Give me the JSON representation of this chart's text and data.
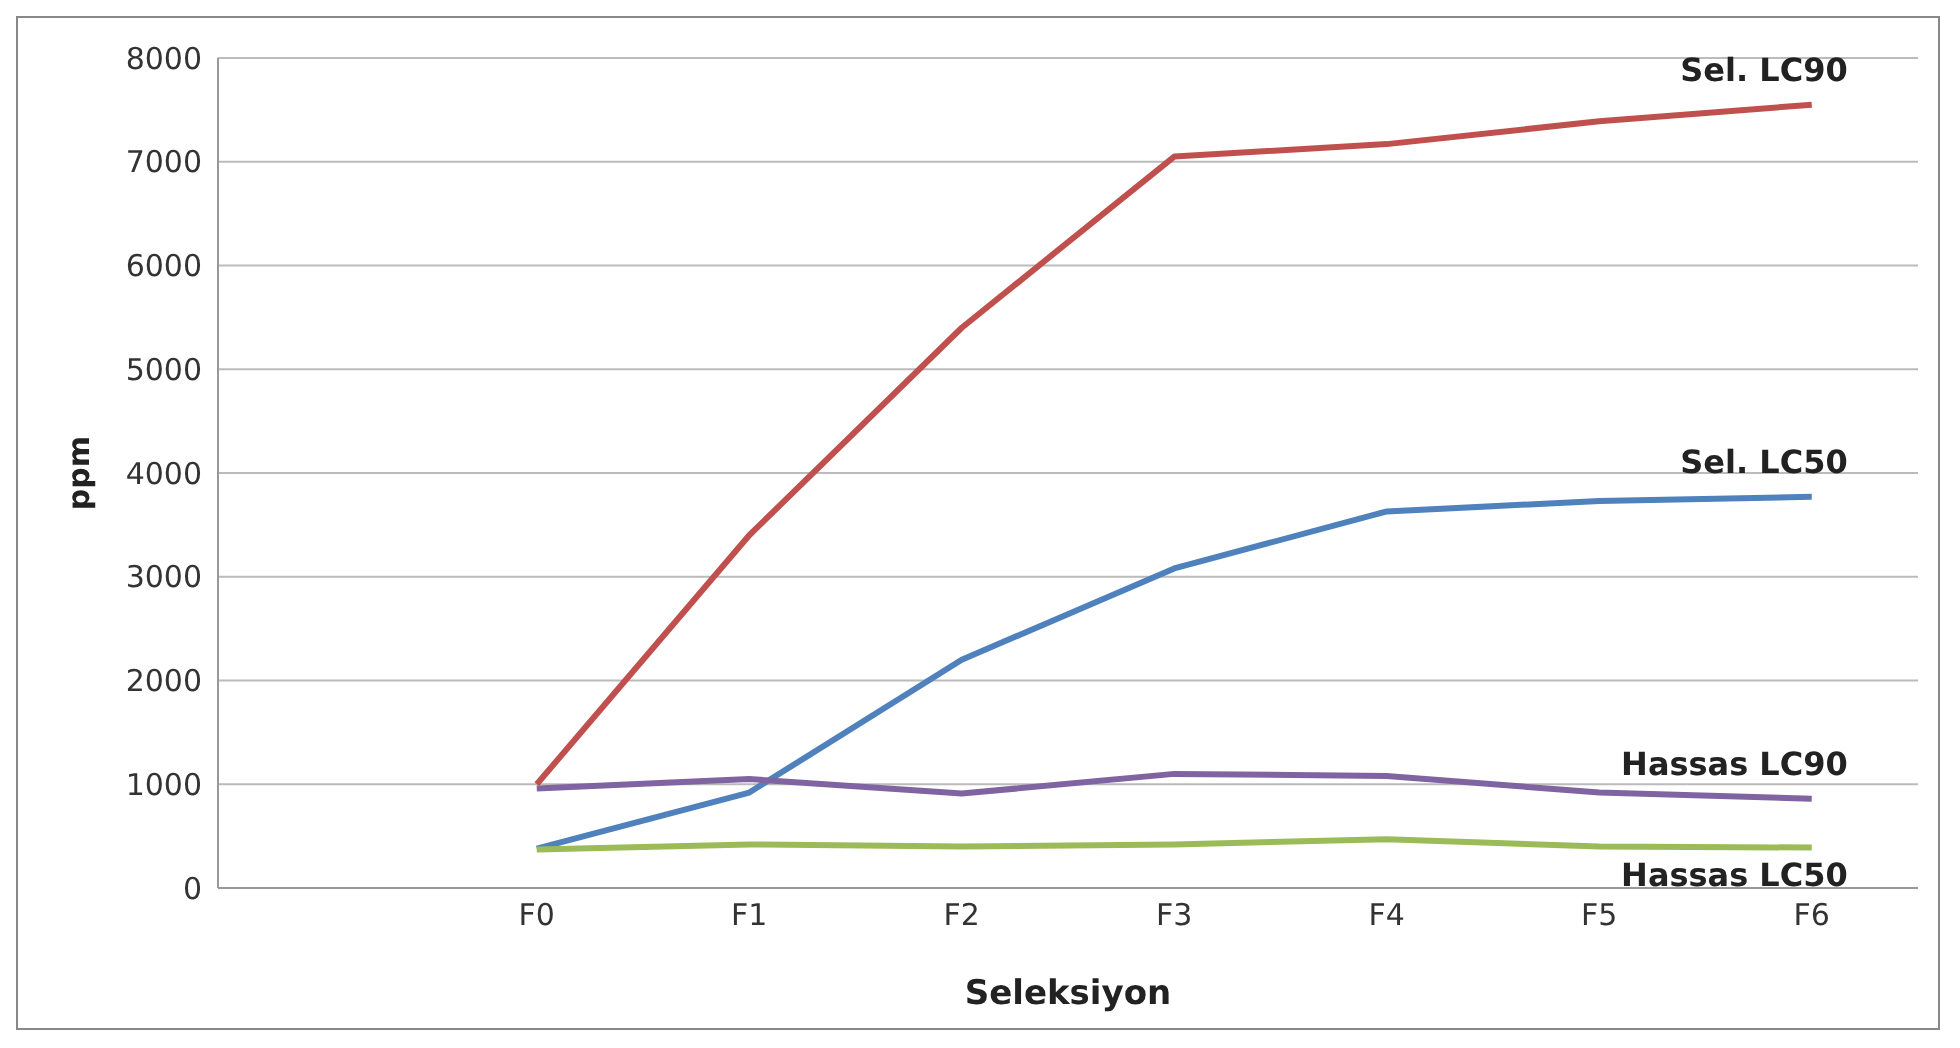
{
  "chart_data": {
    "type": "line",
    "xlabel": "Seleksiyon",
    "ylabel": "ppm",
    "categories": [
      null,
      "F0",
      "F1",
      "F2",
      "F3",
      "F4",
      "F5",
      "F6"
    ],
    "series": [
      {
        "name": "Sel. LC90",
        "color": "#c0504d",
        "values": [
          null,
          1000,
          3400,
          5400,
          7050,
          7170,
          7390,
          7550
        ]
      },
      {
        "name": "Sel. LC50",
        "color": "#4f81bd",
        "values": [
          null,
          380,
          920,
          2200,
          3080,
          3630,
          3730,
          3770
        ]
      },
      {
        "name": "Hassas LC90",
        "color": "#8064a2",
        "values": [
          null,
          960,
          1050,
          910,
          1100,
          1080,
          920,
          860
        ]
      },
      {
        "name": "Hassas LC50",
        "color": "#9bbb59",
        "values": [
          null,
          370,
          420,
          400,
          420,
          470,
          400,
          390
        ]
      }
    ],
    "ylim": [
      0,
      8000
    ],
    "yticks": [
      0,
      1000,
      2000,
      3000,
      4000,
      5000,
      6000,
      7000,
      8000
    ],
    "grid": "y",
    "legend": false,
    "marker": "none",
    "line_style": "solid"
  }
}
